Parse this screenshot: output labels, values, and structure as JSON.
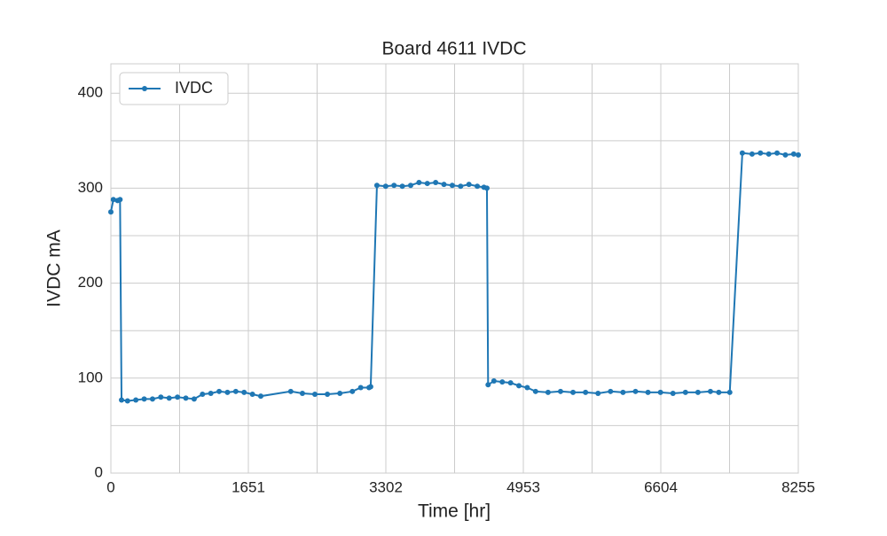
{
  "chart_data": {
    "type": "line",
    "title": "Board 4611 IVDC",
    "xlabel": "Time [hr]",
    "ylabel": "IVDC mA",
    "x": [
      0,
      30,
      80,
      110,
      128,
      200,
      300,
      400,
      500,
      600,
      700,
      800,
      900,
      1000,
      1100,
      1200,
      1300,
      1400,
      1500,
      1600,
      1700,
      1800,
      2160,
      2300,
      2450,
      2600,
      2750,
      2900,
      3000,
      3100,
      3120,
      3195,
      3300,
      3400,
      3500,
      3600,
      3700,
      3800,
      3900,
      4000,
      4100,
      4200,
      4300,
      4400,
      4480,
      4516,
      4530,
      4600,
      4700,
      4800,
      4900,
      5000,
      5100,
      5250,
      5400,
      5550,
      5700,
      5850,
      6000,
      6150,
      6300,
      6450,
      6600,
      6750,
      6900,
      7050,
      7200,
      7300,
      7432,
      7583,
      7700,
      7800,
      7900,
      8000,
      8100,
      8200,
      8255
    ],
    "series": [
      {
        "name": "IVDC",
        "color": "#1f77b4",
        "values": [
          275,
          288,
          287,
          288,
          77,
          76,
          77,
          78,
          78,
          80,
          79,
          80,
          79,
          78,
          83,
          84,
          86,
          85,
          86,
          85,
          83,
          81,
          86,
          84,
          83,
          83,
          84,
          86,
          90,
          90,
          91,
          303,
          302,
          303,
          302,
          303,
          306,
          305,
          306,
          304,
          303,
          302,
          304,
          302,
          301,
          300,
          93,
          97,
          96,
          95,
          92,
          90,
          86,
          85,
          86,
          85,
          85,
          84,
          86,
          85,
          86,
          85,
          85,
          84,
          85,
          85,
          86,
          85,
          85,
          337,
          336,
          337,
          336,
          337,
          335,
          336,
          335
        ]
      }
    ],
    "xlim": [
      0,
      8255
    ],
    "xticks": [
      0,
      1651,
      3302,
      4953,
      6604,
      8255
    ],
    "x_minor_ticks": [
      825.5,
      2476.5,
      4127.5,
      5778.5,
      7429.5
    ],
    "ylim": [
      0,
      431
    ],
    "yticks": [
      0,
      100,
      200,
      300,
      400
    ],
    "y_minor_ticks": [
      50,
      150,
      250,
      350
    ],
    "grid": true,
    "legend": "upper left"
  }
}
